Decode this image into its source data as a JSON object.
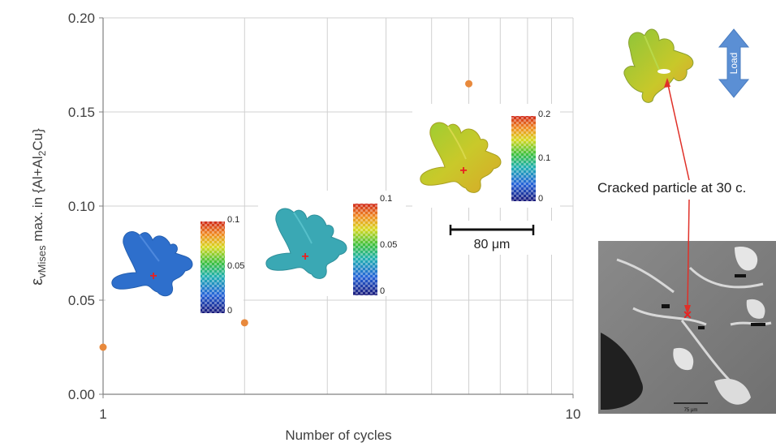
{
  "chart_data": {
    "type": "scatter",
    "x_scale": "log",
    "xlim": [
      1,
      10
    ],
    "ylim": [
      0,
      0.2
    ],
    "x_ticks": [
      "1",
      "10"
    ],
    "y_ticks": [
      "0.00",
      "0.05",
      "0.10",
      "0.15",
      "0.20"
    ],
    "grid": true,
    "xlabel": "Number of cycles",
    "ylabel": {
      "symbol": "ε",
      "subscript": "vMises",
      "middle": " max. in {Al+Al",
      "sub2": "2",
      "end": "Cu}"
    },
    "series": [
      {
        "color": "#e8893c",
        "points": [
          {
            "x": 1,
            "y": 0.025
          },
          {
            "x": 2,
            "y": 0.038
          },
          {
            "x": 6,
            "y": 0.165
          }
        ]
      }
    ]
  },
  "colorbars": [
    {
      "labels": [
        "0.1",
        "0.05",
        "0"
      ]
    },
    {
      "labels": [
        "0.1",
        "0.05",
        "0"
      ]
    },
    {
      "labels": [
        "0.2",
        "0.1",
        "0"
      ]
    }
  ],
  "scale_bar": {
    "label": "80 μm"
  },
  "annotation": {
    "text": "Cracked particle at 30 c."
  },
  "load_label": "Load",
  "micrograph": {
    "scale_text": "75 μm"
  },
  "colors": {
    "particle_blue": "#2e6fcc",
    "particle_teal": "#3aa8b4",
    "particle_yellow": "#c2c82a",
    "arrow_red": "#e03028",
    "load_arrow": "#5b8fd4"
  }
}
